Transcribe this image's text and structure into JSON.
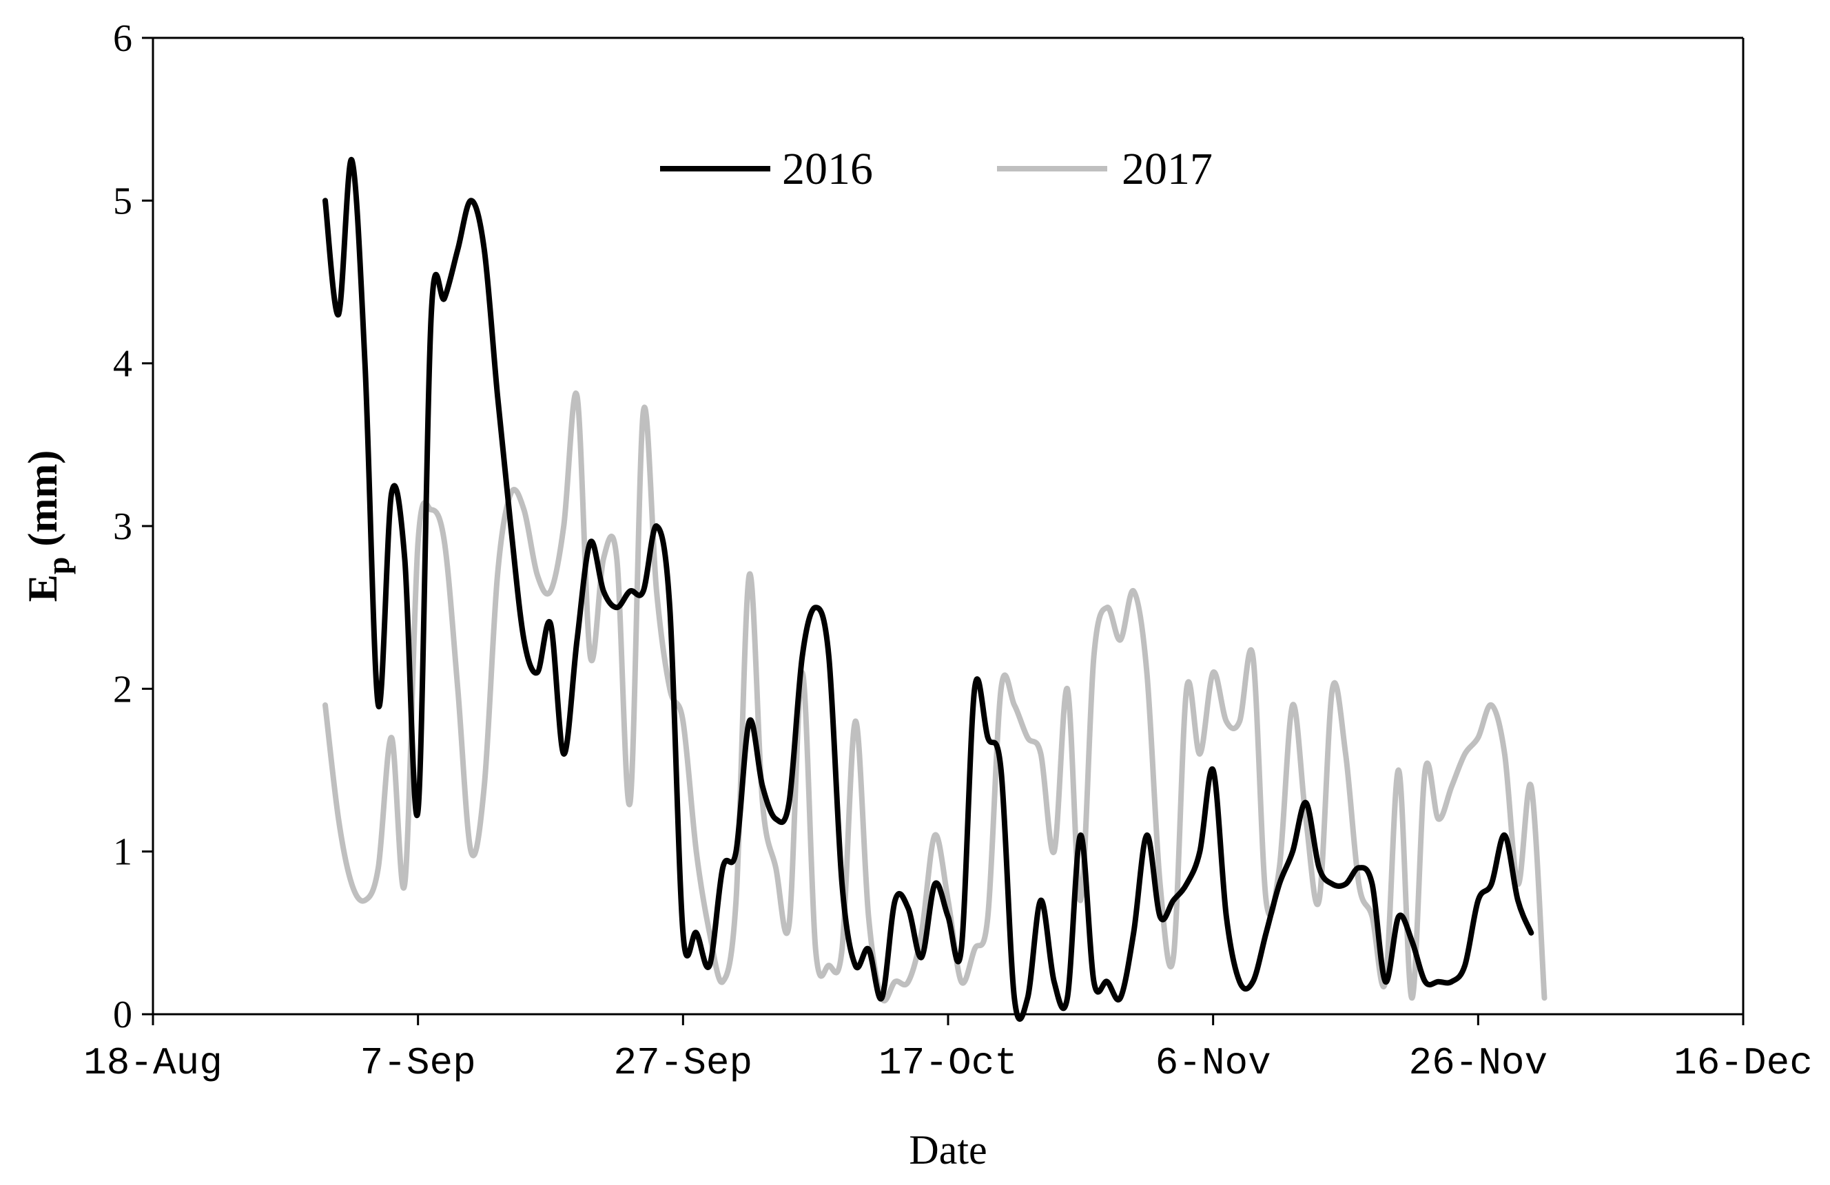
{
  "chart_data": {
    "type": "line",
    "title": "",
    "xlabel": "Date",
    "ylabel_main": "E",
    "ylabel_sub": "p",
    "ylabel_unit": " (mm)",
    "x_ticks": [
      "2016-08-18",
      "2016-09-07",
      "2016-09-27",
      "2016-10-17",
      "2016-11-06",
      "2016-11-26",
      "2016-12-16"
    ],
    "x_tick_labels": [
      "18-Aug",
      "7-Sep",
      "27-Sep",
      "17-Oct",
      "6-Nov",
      "26-Nov",
      "16-Dec"
    ],
    "xlim": [
      "2016-08-18",
      "2016-12-16"
    ],
    "y_ticks": [
      0,
      1,
      2,
      3,
      4,
      5,
      6
    ],
    "ylim": [
      0,
      6
    ],
    "grid": false,
    "legend_position": "top-center",
    "series": [
      {
        "name": "2016",
        "color": "#000000",
        "points": [
          [
            "2016-08-31",
            5.0
          ],
          [
            "2016-09-01",
            4.3
          ],
          [
            "2016-09-02",
            5.25
          ],
          [
            "2016-09-03",
            4.0
          ],
          [
            "2016-09-04",
            1.9
          ],
          [
            "2016-09-05",
            3.2
          ],
          [
            "2016-09-06",
            2.8
          ],
          [
            "2016-09-07",
            1.25
          ],
          [
            "2016-09-08",
            4.3
          ],
          [
            "2016-09-09",
            4.4
          ],
          [
            "2016-09-10",
            4.7
          ],
          [
            "2016-09-11",
            5.0
          ],
          [
            "2016-09-12",
            4.7
          ],
          [
            "2016-09-13",
            3.8
          ],
          [
            "2016-09-14",
            3.0
          ],
          [
            "2016-09-15",
            2.3
          ],
          [
            "2016-09-16",
            2.1
          ],
          [
            "2016-09-17",
            2.4
          ],
          [
            "2016-09-18",
            1.6
          ],
          [
            "2016-09-19",
            2.3
          ],
          [
            "2016-09-20",
            2.9
          ],
          [
            "2016-09-21",
            2.6
          ],
          [
            "2016-09-22",
            2.5
          ],
          [
            "2016-09-23",
            2.6
          ],
          [
            "2016-09-24",
            2.6
          ],
          [
            "2016-09-25",
            3.0
          ],
          [
            "2016-09-26",
            2.5
          ],
          [
            "2016-09-27",
            0.5
          ],
          [
            "2016-09-28",
            0.5
          ],
          [
            "2016-09-29",
            0.3
          ],
          [
            "2016-09-30",
            0.9
          ],
          [
            "2016-10-01",
            1.0
          ],
          [
            "2016-10-02",
            1.8
          ],
          [
            "2016-10-03",
            1.4
          ],
          [
            "2016-10-04",
            1.2
          ],
          [
            "2016-10-05",
            1.3
          ],
          [
            "2016-10-06",
            2.2
          ],
          [
            "2016-10-07",
            2.5
          ],
          [
            "2016-10-08",
            2.2
          ],
          [
            "2016-10-09",
            0.8
          ],
          [
            "2016-10-10",
            0.3
          ],
          [
            "2016-10-11",
            0.4
          ],
          [
            "2016-10-12",
            0.1
          ],
          [
            "2016-10-13",
            0.7
          ],
          [
            "2016-10-14",
            0.65
          ],
          [
            "2016-10-15",
            0.35
          ],
          [
            "2016-10-16",
            0.8
          ],
          [
            "2016-10-17",
            0.6
          ],
          [
            "2016-10-18",
            0.4
          ],
          [
            "2016-10-19",
            2.0
          ],
          [
            "2016-10-20",
            1.7
          ],
          [
            "2016-10-21",
            1.5
          ],
          [
            "2016-10-22",
            0.1
          ],
          [
            "2016-10-23",
            0.1
          ],
          [
            "2016-10-24",
            0.7
          ],
          [
            "2016-10-25",
            0.2
          ],
          [
            "2016-10-26",
            0.1
          ],
          [
            "2016-10-27",
            1.1
          ],
          [
            "2016-10-28",
            0.2
          ],
          [
            "2016-10-29",
            0.2
          ],
          [
            "2016-10-30",
            0.1
          ],
          [
            "2016-10-31",
            0.5
          ],
          [
            "2016-11-01",
            1.1
          ],
          [
            "2016-11-02",
            0.6
          ],
          [
            "2016-11-03",
            0.7
          ],
          [
            "2016-11-04",
            0.8
          ],
          [
            "2016-11-05",
            1.0
          ],
          [
            "2016-11-06",
            1.5
          ],
          [
            "2016-11-07",
            0.6
          ],
          [
            "2016-11-08",
            0.2
          ],
          [
            "2016-11-09",
            0.2
          ],
          [
            "2016-11-10",
            0.5
          ],
          [
            "2016-11-11",
            0.8
          ],
          [
            "2016-11-12",
            1.0
          ],
          [
            "2016-11-13",
            1.3
          ],
          [
            "2016-11-14",
            0.9
          ],
          [
            "2016-11-15",
            0.8
          ],
          [
            "2016-11-16",
            0.8
          ],
          [
            "2016-11-17",
            0.9
          ],
          [
            "2016-11-18",
            0.8
          ],
          [
            "2016-11-19",
            0.2
          ],
          [
            "2016-11-20",
            0.6
          ],
          [
            "2016-11-21",
            0.45
          ],
          [
            "2016-11-22",
            0.2
          ],
          [
            "2016-11-23",
            0.2
          ],
          [
            "2016-11-24",
            0.2
          ],
          [
            "2016-11-25",
            0.3
          ],
          [
            "2016-11-26",
            0.7
          ],
          [
            "2016-11-27",
            0.8
          ],
          [
            "2016-11-28",
            1.1
          ],
          [
            "2016-11-29",
            0.7
          ],
          [
            "2016-11-30",
            0.5
          ]
        ]
      },
      {
        "name": "2017",
        "color": "#bfbfbf",
        "points": [
          [
            "2016-08-31",
            1.9
          ],
          [
            "2016-09-01",
            1.2
          ],
          [
            "2016-09-02",
            0.8
          ],
          [
            "2016-09-03",
            0.7
          ],
          [
            "2016-09-04",
            0.9
          ],
          [
            "2016-09-05",
            1.7
          ],
          [
            "2016-09-06",
            0.8
          ],
          [
            "2016-09-07",
            2.9
          ],
          [
            "2016-09-08",
            3.1
          ],
          [
            "2016-09-09",
            2.9
          ],
          [
            "2016-09-10",
            2.0
          ],
          [
            "2016-09-11",
            1.0
          ],
          [
            "2016-09-12",
            1.4
          ],
          [
            "2016-09-13",
            2.7
          ],
          [
            "2016-09-14",
            3.2
          ],
          [
            "2016-09-15",
            3.1
          ],
          [
            "2016-09-16",
            2.7
          ],
          [
            "2016-09-17",
            2.6
          ],
          [
            "2016-09-18",
            3.0
          ],
          [
            "2016-09-19",
            3.8
          ],
          [
            "2016-09-20",
            2.2
          ],
          [
            "2016-09-21",
            2.8
          ],
          [
            "2016-09-22",
            2.8
          ],
          [
            "2016-09-23",
            1.3
          ],
          [
            "2016-09-24",
            3.7
          ],
          [
            "2016-09-25",
            2.6
          ],
          [
            "2016-09-26",
            2.0
          ],
          [
            "2016-09-27",
            1.8
          ],
          [
            "2016-09-28",
            1.0
          ],
          [
            "2016-09-29",
            0.5
          ],
          [
            "2016-09-30",
            0.2
          ],
          [
            "2016-10-01",
            0.7
          ],
          [
            "2016-10-02",
            2.7
          ],
          [
            "2016-10-03",
            1.3
          ],
          [
            "2016-10-04",
            0.9
          ],
          [
            "2016-10-05",
            0.55
          ],
          [
            "2016-10-06",
            2.1
          ],
          [
            "2016-10-07",
            0.4
          ],
          [
            "2016-10-08",
            0.3
          ],
          [
            "2016-10-09",
            0.4
          ],
          [
            "2016-10-10",
            1.8
          ],
          [
            "2016-10-11",
            0.6
          ],
          [
            "2016-10-12",
            0.1
          ],
          [
            "2016-10-13",
            0.2
          ],
          [
            "2016-10-14",
            0.2
          ],
          [
            "2016-10-15",
            0.5
          ],
          [
            "2016-10-16",
            1.1
          ],
          [
            "2016-10-17",
            0.7
          ],
          [
            "2016-10-18",
            0.2
          ],
          [
            "2016-10-19",
            0.4
          ],
          [
            "2016-10-20",
            0.6
          ],
          [
            "2016-10-21",
            2.0
          ],
          [
            "2016-10-22",
            1.9
          ],
          [
            "2016-10-23",
            1.7
          ],
          [
            "2016-10-24",
            1.6
          ],
          [
            "2016-10-25",
            1.0
          ],
          [
            "2016-10-26",
            2.0
          ],
          [
            "2016-10-27",
            0.7
          ],
          [
            "2016-10-28",
            2.2
          ],
          [
            "2016-10-29",
            2.5
          ],
          [
            "2016-10-30",
            2.3
          ],
          [
            "2016-10-31",
            2.6
          ],
          [
            "2016-11-01",
            2.1
          ],
          [
            "2016-11-02",
            0.8
          ],
          [
            "2016-11-03",
            0.35
          ],
          [
            "2016-11-04",
            2.0
          ],
          [
            "2016-11-05",
            1.6
          ],
          [
            "2016-11-06",
            2.1
          ],
          [
            "2016-11-07",
            1.8
          ],
          [
            "2016-11-08",
            1.8
          ],
          [
            "2016-11-09",
            2.2
          ],
          [
            "2016-11-10",
            0.7
          ],
          [
            "2016-11-11",
            0.9
          ],
          [
            "2016-11-12",
            1.9
          ],
          [
            "2016-11-13",
            1.2
          ],
          [
            "2016-11-14",
            0.7
          ],
          [
            "2016-11-15",
            2.0
          ],
          [
            "2016-11-16",
            1.6
          ],
          [
            "2016-11-17",
            0.8
          ],
          [
            "2016-11-18",
            0.6
          ],
          [
            "2016-11-19",
            0.2
          ],
          [
            "2016-11-20",
            1.5
          ],
          [
            "2016-11-21",
            0.1
          ],
          [
            "2016-11-22",
            1.5
          ],
          [
            "2016-11-23",
            1.2
          ],
          [
            "2016-11-24",
            1.4
          ],
          [
            "2016-11-25",
            1.6
          ],
          [
            "2016-11-26",
            1.7
          ],
          [
            "2016-11-27",
            1.9
          ],
          [
            "2016-11-28",
            1.6
          ],
          [
            "2016-11-29",
            0.8
          ],
          [
            "2016-11-30",
            1.4
          ],
          [
            "2016-12-01",
            0.1
          ]
        ]
      }
    ]
  }
}
